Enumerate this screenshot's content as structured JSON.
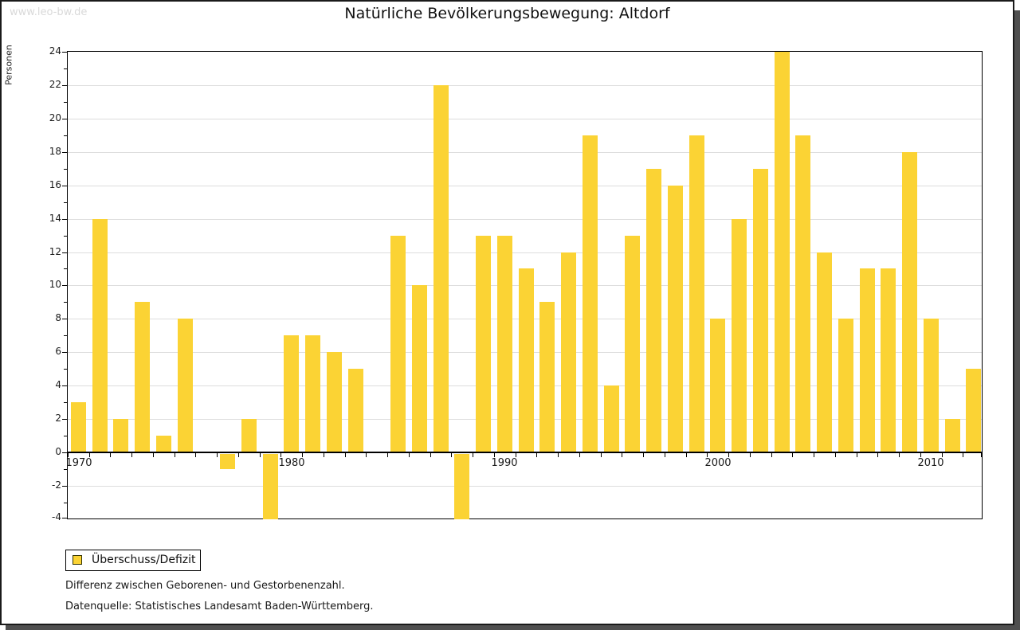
{
  "watermark": "www.leo-bw.de",
  "title": "Natürliche Bevölkerungsbewegung: Altdorf",
  "legend": {
    "label": "Überschuss/Defizit"
  },
  "footnotes": {
    "line1": "Differenz zwischen Geborenen- und Gestorbenenzahl.",
    "line2": "Datenquelle: Statistisches Landesamt Baden-Württemberg."
  },
  "chart_data": {
    "type": "bar",
    "title": "Natürliche Bevölkerungsbewegung: Altdorf",
    "xlabel": "",
    "ylabel": "Personen",
    "ylim": [
      -4,
      24
    ],
    "ytick_step": 2,
    "grid": true,
    "legend_position": "bottom-left",
    "bar_color": "#fbd334",
    "series_name": "Überschuss/Defizit",
    "x": [
      1970,
      1971,
      1972,
      1973,
      1974,
      1975,
      1976,
      1977,
      1978,
      1979,
      1980,
      1981,
      1982,
      1983,
      1984,
      1985,
      1986,
      1987,
      1988,
      1989,
      1990,
      1991,
      1992,
      1993,
      1994,
      1995,
      1996,
      1997,
      1998,
      1999,
      2000,
      2001,
      2002,
      2003,
      2004,
      2005,
      2006,
      2007,
      2008,
      2009,
      2010,
      2011,
      2012
    ],
    "values": [
      3,
      14,
      2,
      9,
      1,
      8,
      0,
      -1,
      2,
      -4,
      7,
      7,
      6,
      5,
      0,
      13,
      10,
      22,
      -4,
      13,
      13,
      11,
      9,
      12,
      19,
      4,
      13,
      17,
      16,
      19,
      8,
      14,
      17,
      24,
      19,
      12,
      8,
      11,
      11,
      18,
      8,
      2,
      5
    ],
    "xticks_labeled": [
      1970,
      1980,
      1990,
      2000,
      2010
    ]
  }
}
